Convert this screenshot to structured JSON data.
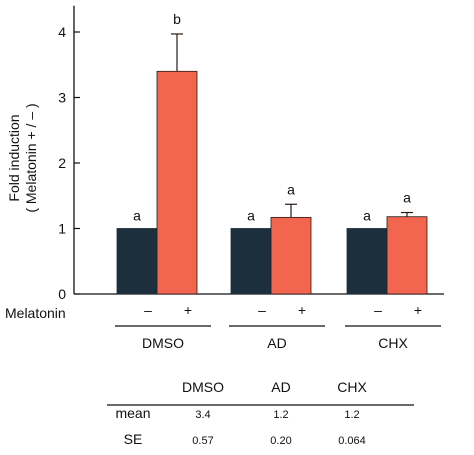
{
  "chart_data": {
    "type": "bar",
    "ylabel_line1": "Fold induction",
    "ylabel_line2": "( Melatonin + / – )",
    "ylim": [
      0,
      4.4
    ],
    "yticks": [
      0,
      1,
      2,
      3,
      4
    ],
    "treatment_label": "Melatonin",
    "groups": [
      "DMSO",
      "AD",
      "CHX"
    ],
    "series": [
      {
        "name": "–",
        "color": "#1b2f3d",
        "values": [
          1,
          1,
          1
        ],
        "significance": [
          "a",
          "a",
          "a"
        ]
      },
      {
        "name": "+",
        "color": "#f26650",
        "values": [
          3.4,
          1.17,
          1.18
        ],
        "error": [
          0.57,
          0.2,
          0.064
        ],
        "significance": [
          "b",
          "a",
          "a"
        ]
      }
    ],
    "grid": false,
    "legend": "none"
  },
  "table": {
    "columns": [
      "DMSO",
      "AD",
      "CHX"
    ],
    "rows": [
      {
        "label": "mean",
        "values": [
          "3.4",
          "1.2",
          "1.2"
        ]
      },
      {
        "label": "SE",
        "values": [
          "0.57",
          "0.20",
          "0.064"
        ]
      }
    ]
  }
}
